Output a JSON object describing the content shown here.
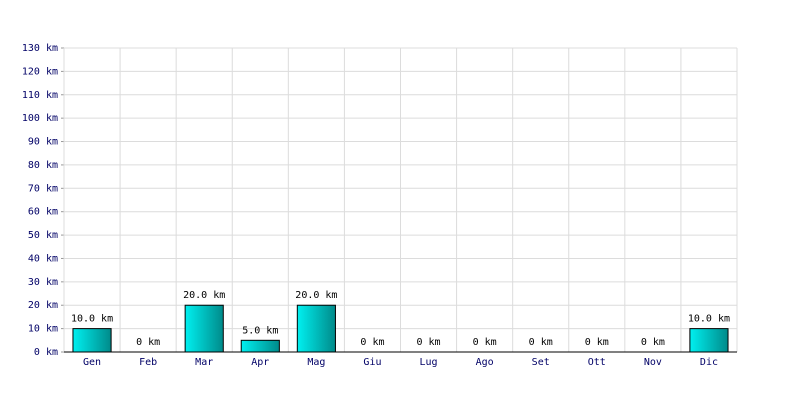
{
  "chart_data": {
    "type": "bar",
    "categories": [
      "Gen",
      "Feb",
      "Mar",
      "Apr",
      "Mag",
      "Giu",
      "Lug",
      "Ago",
      "Set",
      "Ott",
      "Nov",
      "Dic"
    ],
    "values": [
      10,
      0,
      20,
      5,
      20,
      0,
      0,
      0,
      0,
      0,
      0,
      10
    ],
    "value_labels": [
      "10.0 km",
      "0 km",
      "20.0 km",
      "5.0 km",
      "20.0 km",
      "0 km",
      "0 km",
      "0 km",
      "0 km",
      "0 km",
      "0 km",
      "10.0 km"
    ],
    "ylim": [
      0,
      130
    ],
    "yticks": [
      {
        "value": 0,
        "label": "0 km"
      },
      {
        "value": 10,
        "label": "10 km"
      },
      {
        "value": 20,
        "label": "20 km"
      },
      {
        "value": 30,
        "label": "30 km"
      },
      {
        "value": 40,
        "label": "40 km"
      },
      {
        "value": 50,
        "label": "50 km"
      },
      {
        "value": 60,
        "label": "60 km"
      },
      {
        "value": 70,
        "label": "70 km"
      },
      {
        "value": 80,
        "label": "80 km"
      },
      {
        "value": 90,
        "label": "90 km"
      },
      {
        "value": 100,
        "label": "100 km"
      },
      {
        "value": 110,
        "label": "110 km"
      },
      {
        "value": 120,
        "label": "120 km"
      },
      {
        "value": 130,
        "label": "130 km"
      }
    ],
    "grid": true
  }
}
